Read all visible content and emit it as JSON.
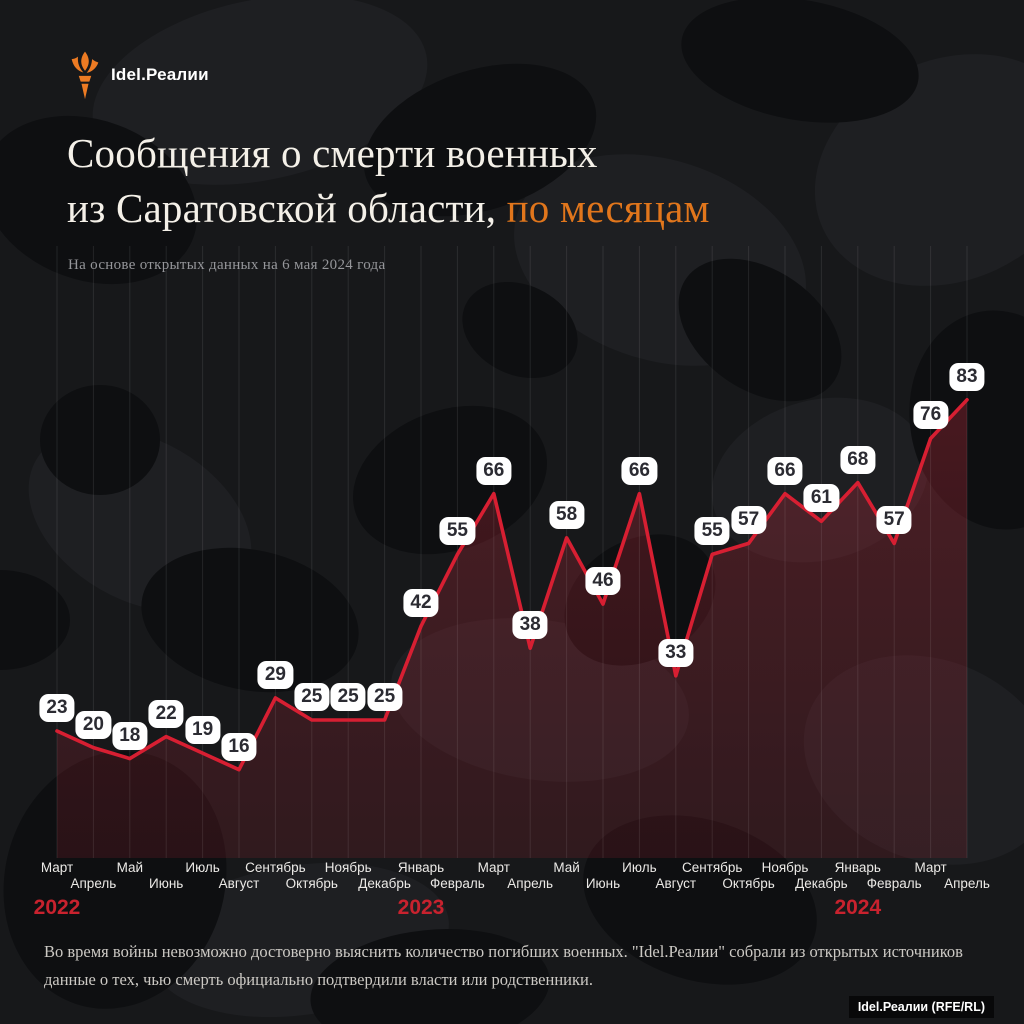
{
  "header": {
    "logo_text": "Idel.Реалии",
    "title_line1": "Сообщения о смерти военных",
    "title_line2_plain": "из Саратовской области, ",
    "title_line2_accent": "по месяцам",
    "subtitle": "На основе открытых данных на 6 мая 2024 года"
  },
  "chart_data": {
    "type": "area",
    "title": "Сообщения о смерти военных из Саратовской области, по месяцам",
    "categories": [
      "Март 2022",
      "Апрель 2022",
      "Май 2022",
      "Июнь 2022",
      "Июль 2022",
      "Август 2022",
      "Сентябрь 2022",
      "Октябрь 2022",
      "Ноябрь 2022",
      "Декабрь 2022",
      "Январь 2023",
      "Февраль 2023",
      "Март 2023",
      "Апрель 2023",
      "Май 2023",
      "Июнь 2023",
      "Июль 2023",
      "Август 2023",
      "Сентябрь 2023",
      "Октябрь 2023",
      "Ноябрь 2023",
      "Декабрь 2023",
      "Январь 2024",
      "Февраль 2024",
      "Март 2024",
      "Апрель 2024"
    ],
    "values": [
      23,
      20,
      18,
      22,
      19,
      16,
      29,
      25,
      25,
      25,
      42,
      55,
      66,
      38,
      58,
      46,
      66,
      33,
      55,
      57,
      66,
      61,
      68,
      57,
      76,
      83
    ],
    "year_markers": [
      {
        "label": "2022",
        "at_index": 0
      },
      {
        "label": "2023",
        "at_index": 10
      },
      {
        "label": "2024",
        "at_index": 22
      }
    ],
    "ylim": [
      0,
      90
    ],
    "grid": "vertical-faint",
    "legend": "none",
    "data_labels": "all-points"
  },
  "colors": {
    "accent_orange": "#e1761c",
    "line_red": "#d71f32",
    "year_red": "#c8222e",
    "area_fill_top": "rgba(195,45,62,0.32)",
    "area_fill_bottom": "rgba(150,32,46,0.20)",
    "gridline": "rgba(255,255,255,0.09)",
    "value_label_bg": "#ffffff",
    "value_label_text": "#2b2b32",
    "background": "#17181a"
  },
  "footer": {
    "line1": "Во время войны невозможно достоверно выяснить количество погибших военных. \"Idel.Реалии\" собрали из открытых источников",
    "line2": "данные о тех, чью смерть официально подтвердили власти или родственники."
  },
  "attribution": "Idel.Реалии (RFE/RL)"
}
